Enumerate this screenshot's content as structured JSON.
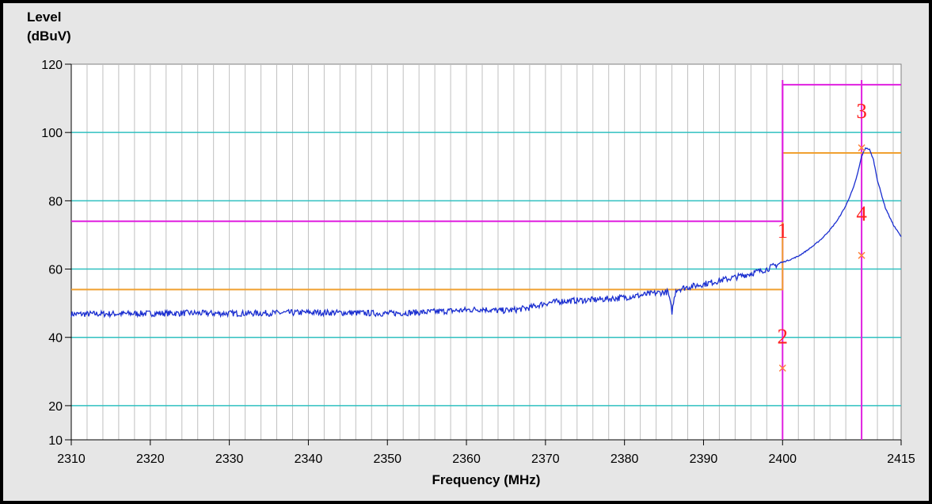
{
  "chart_data": {
    "type": "line",
    "ylabel_line1": "Level",
    "ylabel_line2": "(dBuV)",
    "xlabel": "Frequency (MHz)",
    "xlim": [
      2310,
      2415
    ],
    "ylim": [
      10,
      120
    ],
    "x_ticks": [
      2310,
      2320,
      2330,
      2340,
      2350,
      2360,
      2370,
      2380,
      2390,
      2400,
      2415
    ],
    "y_ticks": [
      10,
      20,
      40,
      60,
      80,
      100,
      120
    ],
    "grid": true,
    "colors": {
      "trace": "#1a2ed0",
      "peak_limit": "#e020e0",
      "avg_limit": "#f0a030",
      "hgrid": "#30c0c0",
      "vgrid": "#c0c0c0",
      "marker_text": "#ff2020",
      "marker_x": "#ff8040",
      "plot_bg": "#ffffff",
      "frame_bg": "#e6e6e6"
    },
    "series": [
      {
        "type": "line",
        "x": [
          2310,
          2315,
          2320,
          2325,
          2330,
          2335,
          2340,
          2345,
          2350,
          2355,
          2360,
          2362,
          2364,
          2366,
          2368,
          2370,
          2372,
          2374,
          2376,
          2378,
          2380,
          2382,
          2384,
          2385.5,
          2386,
          2386.5,
          2388,
          2390,
          2392,
          2394,
          2396,
          2398,
          2399,
          2400,
          2401,
          2402,
          2403,
          2404,
          2405,
          2406,
          2407,
          2408,
          2409,
          2409.5,
          2410,
          2410.5,
          2411,
          2411.5,
          2412,
          2413,
          2414,
          2415
        ],
        "y": [
          46.8,
          46.9,
          47.0,
          47.1,
          47.0,
          47.1,
          47.3,
          47.2,
          47.0,
          47.4,
          48.0,
          48.3,
          47.8,
          48.0,
          48.7,
          50.0,
          50.6,
          50.8,
          51.0,
          51.3,
          51.7,
          52.3,
          53.0,
          53.3,
          47.5,
          54.0,
          54.7,
          55.6,
          56.6,
          57.6,
          58.7,
          60.0,
          61.0,
          62.0,
          62.8,
          63.8,
          65.3,
          67.0,
          69.0,
          71.5,
          74.5,
          78.5,
          84.0,
          88.0,
          93.0,
          95.5,
          95.0,
          92.0,
          86.0,
          78.0,
          73.0,
          69.5
        ]
      }
    ],
    "peak_limit": {
      "segments": [
        {
          "x1": 2310,
          "x2": 2400,
          "y": 74
        },
        {
          "x1": 2400,
          "x2": 2415,
          "y": 114
        }
      ]
    },
    "avg_limit": {
      "segments": [
        {
          "x1": 2310,
          "x2": 2400,
          "y": 54
        },
        {
          "x1": 2400,
          "x2": 2415,
          "y": 94
        }
      ]
    },
    "vertical_lines": [
      2400,
      2410
    ],
    "markers": [
      {
        "label": "1",
        "x": 2400,
        "y": 72
      },
      {
        "label": "2",
        "x": 2400,
        "y": 41
      },
      {
        "label": "3",
        "x": 2410,
        "y": 107
      },
      {
        "label": "4",
        "x": 2410,
        "y": 77
      }
    ],
    "x_markers": [
      {
        "x": 2400,
        "y": 31
      },
      {
        "x": 2410,
        "y": 64
      },
      {
        "x": 2410,
        "y": 95.5
      }
    ]
  }
}
